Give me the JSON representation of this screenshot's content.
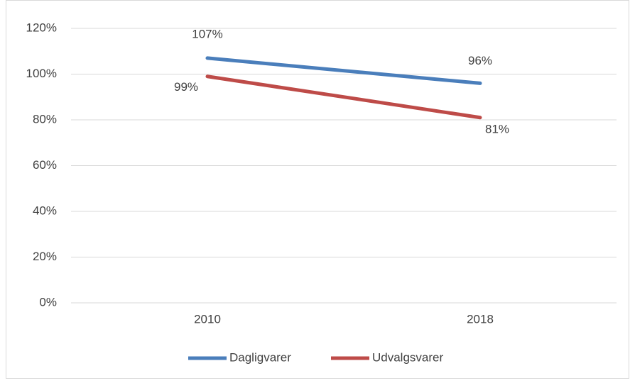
{
  "chart_data": {
    "type": "line",
    "categories": [
      "2010",
      "2018"
    ],
    "series": [
      {
        "name": "Dagligvarer",
        "color": "#4a7ebb",
        "values": [
          107,
          96
        ],
        "value_labels": [
          "107%",
          "96%"
        ]
      },
      {
        "name": "Udvalgsvarer",
        "color": "#be4b48",
        "values": [
          99,
          81
        ],
        "value_labels": [
          "99%",
          "81%"
        ]
      }
    ],
    "ylim": [
      0,
      120
    ],
    "yticks": [
      {
        "value": 0,
        "label": "0%"
      },
      {
        "value": 20,
        "label": "20%"
      },
      {
        "value": 40,
        "label": "40%"
      },
      {
        "value": 60,
        "label": "60%"
      },
      {
        "value": 80,
        "label": "80%"
      },
      {
        "value": 100,
        "label": "100%"
      },
      {
        "value": 120,
        "label": "120%"
      }
    ],
    "grid": true,
    "legend": "bottom"
  }
}
